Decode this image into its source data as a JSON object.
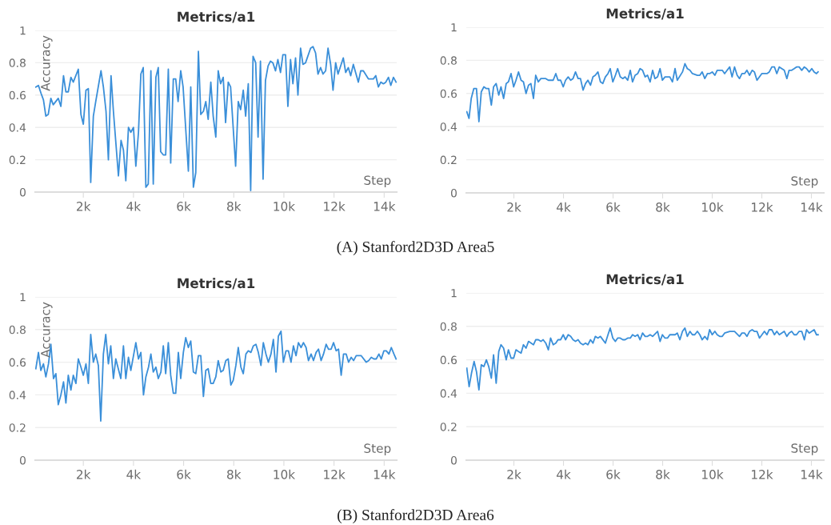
{
  "chart_data": [
    {
      "type": "line",
      "title": "Metrics/a1",
      "xlabel": "Step",
      "ylabel": "Accuracy",
      "annotations": [
        "(A) Stanford2D3D Area5"
      ],
      "xlim": [
        80,
        14500
      ],
      "ylim": [
        0,
        1
      ],
      "grid": "y",
      "xticks": [
        {
          "value": 2000,
          "label": "2k"
        },
        {
          "value": 4000,
          "label": "4k"
        },
        {
          "value": 6000,
          "label": "6k"
        },
        {
          "value": 8000,
          "label": "8k"
        },
        {
          "value": 10000,
          "label": "10k"
        },
        {
          "value": 12000,
          "label": "12k"
        },
        {
          "value": 14000,
          "label": "14k"
        }
      ],
      "yticks": [
        0,
        0.2,
        0.4,
        0.6,
        0.8,
        1
      ],
      "series": [
        {
          "color": "#3a8fd9",
          "x": [
            105,
            210,
            315,
            410,
            505,
            600,
            705,
            800,
            1000,
            1105,
            1210,
            1305,
            1400,
            1505,
            1600,
            1800,
            1905,
            2000,
            2105,
            2200,
            2295,
            2400,
            2495,
            2705,
            2800,
            2905,
            3000,
            3105,
            3200,
            3400,
            3505,
            3600,
            3695,
            3800,
            3895,
            4000,
            4095,
            4200,
            4295,
            4390,
            4495,
            4590,
            4695,
            4790,
            4895,
            4990,
            5085,
            5190,
            5285,
            5390,
            5485,
            5590,
            5685,
            5780,
            5885,
            5980,
            6190,
            6285,
            6390,
            6485,
            6590,
            6685,
            6790,
            6885,
            6980,
            7085,
            7180,
            7285,
            7380,
            7475,
            7580,
            7675,
            7780,
            7875,
            8075,
            8180,
            8275,
            8380,
            8475,
            8580,
            8675,
            8770,
            8875,
            8970,
            9065,
            9170,
            9265,
            9370,
            9465,
            9560,
            9665,
            9760,
            9865,
            9960,
            10065,
            10160,
            10265,
            10360,
            10465,
            10560,
            10665,
            10760,
            10865,
            11065,
            11160,
            11265,
            11360,
            11465,
            11560,
            11665,
            11760,
            11865,
            11960,
            12065,
            12160,
            12370,
            12465,
            12570,
            12665,
            12770,
            12970,
            13065,
            13170,
            13370,
            13570,
            13665,
            13770,
            13865,
            13970,
            14065,
            14170,
            14265,
            14370,
            14475
          ],
          "values": [
            0.65,
            0.66,
            0.61,
            0.57,
            0.47,
            0.48,
            0.58,
            0.54,
            0.58,
            0.53,
            0.72,
            0.62,
            0.62,
            0.71,
            0.68,
            0.76,
            0.48,
            0.42,
            0.63,
            0.64,
            0.06,
            0.47,
            0.56,
            0.75,
            0.65,
            0.5,
            0.2,
            0.72,
            0.5,
            0.1,
            0.32,
            0.26,
            0.07,
            0.4,
            0.37,
            0.4,
            0.16,
            0.37,
            0.73,
            0.77,
            0.03,
            0.05,
            0.75,
            0.05,
            0.71,
            0.77,
            0.25,
            0.23,
            0.23,
            0.76,
            0.18,
            0.7,
            0.7,
            0.56,
            0.75,
            0.65,
            0.13,
            0.65,
            0.03,
            0.12,
            0.87,
            0.48,
            0.5,
            0.56,
            0.45,
            0.68,
            0.47,
            0.34,
            0.75,
            0.67,
            0.71,
            0.43,
            0.68,
            0.65,
            0.16,
            0.56,
            0.51,
            0.63,
            0.47,
            0.67,
            0.01,
            0.84,
            0.8,
            0.34,
            0.81,
            0.08,
            0.69,
            0.78,
            0.81,
            0.8,
            0.75,
            0.82,
            0.74,
            0.85,
            0.85,
            0.53,
            0.82,
            0.67,
            0.83,
            0.6,
            0.89,
            0.79,
            0.8,
            0.89,
            0.9,
            0.86,
            0.73,
            0.77,
            0.73,
            0.75,
            0.89,
            0.79,
            0.63,
            0.8,
            0.73,
            0.83,
            0.74,
            0.77,
            0.72,
            0.79,
            0.68,
            0.75,
            0.75,
            0.7,
            0.7,
            0.72,
            0.65,
            0.68,
            0.67,
            0.68,
            0.71,
            0.66,
            0.71,
            0.68
          ]
        }
      ]
    },
    {
      "type": "line",
      "title": "Metrics/a1",
      "xlabel": "Step",
      "xlim": [
        80,
        14500
      ],
      "ylim": [
        0,
        1
      ],
      "grid": "y",
      "xticks": [
        {
          "value": 2000,
          "label": "2k"
        },
        {
          "value": 4000,
          "label": "4k"
        },
        {
          "value": 6000,
          "label": "6k"
        },
        {
          "value": 8000,
          "label": "8k"
        },
        {
          "value": 10000,
          "label": "10k"
        },
        {
          "value": 12000,
          "label": "12k"
        },
        {
          "value": 14000,
          "label": "14k"
        }
      ],
      "yticks": [
        0,
        0.2,
        0.4,
        0.6,
        0.8,
        1
      ],
      "series": [
        {
          "color": "#3a8fd9",
          "x": [
            100,
            190,
            280,
            385,
            490,
            590,
            685,
            790,
            880,
            985,
            1090,
            1180,
            1285,
            1390,
            1480,
            1585,
            1690,
            1780,
            1885,
            1990,
            2085,
            2185,
            2290,
            2385,
            2490,
            2590,
            2685,
            2790,
            2880,
            2985,
            3090,
            3285,
            3390,
            3585,
            3690,
            3780,
            3885,
            3990,
            4085,
            4190,
            4290,
            4385,
            4485,
            4590,
            4685,
            4790,
            4890,
            4985,
            5090,
            5190,
            5285,
            5390,
            5490,
            5585,
            5690,
            5795,
            5885,
            5990,
            6095,
            6185,
            6290,
            6395,
            6485,
            6590,
            6695,
            6785,
            6890,
            6995,
            7090,
            7190,
            7295,
            7390,
            7495,
            7595,
            7690,
            7795,
            7895,
            7990,
            8095,
            8290,
            8395,
            8500,
            8590,
            8800,
            8900,
            8995,
            9100,
            9200,
            9400,
            9500,
            9595,
            9700,
            9805,
            9895,
            10000,
            10105,
            10200,
            10300,
            10405,
            10500,
            10600,
            10705,
            10800,
            10900,
            11005,
            11100,
            11200,
            11305,
            11400,
            11505,
            11610,
            11700,
            11805,
            12000,
            12205,
            12300,
            12405,
            12510,
            12605,
            12705,
            12905,
            13010,
            13100,
            13205,
            13305,
            13400,
            13505,
            13610,
            13715,
            13805,
            13910,
            14015,
            14110,
            14205,
            14270
          ],
          "values": [
            0.49,
            0.45,
            0.57,
            0.63,
            0.63,
            0.43,
            0.61,
            0.64,
            0.63,
            0.63,
            0.53,
            0.64,
            0.66,
            0.59,
            0.64,
            0.57,
            0.66,
            0.67,
            0.72,
            0.64,
            0.68,
            0.73,
            0.68,
            0.67,
            0.6,
            0.65,
            0.66,
            0.57,
            0.71,
            0.67,
            0.69,
            0.69,
            0.68,
            0.68,
            0.72,
            0.68,
            0.68,
            0.64,
            0.68,
            0.7,
            0.68,
            0.69,
            0.73,
            0.69,
            0.69,
            0.62,
            0.66,
            0.68,
            0.65,
            0.7,
            0.71,
            0.73,
            0.67,
            0.66,
            0.7,
            0.72,
            0.75,
            0.67,
            0.71,
            0.75,
            0.7,
            0.69,
            0.7,
            0.68,
            0.74,
            0.67,
            0.71,
            0.72,
            0.75,
            0.74,
            0.7,
            0.71,
            0.67,
            0.74,
            0.69,
            0.7,
            0.75,
            0.68,
            0.7,
            0.7,
            0.67,
            0.75,
            0.68,
            0.73,
            0.78,
            0.75,
            0.74,
            0.72,
            0.71,
            0.71,
            0.73,
            0.69,
            0.72,
            0.72,
            0.73,
            0.71,
            0.74,
            0.74,
            0.74,
            0.72,
            0.74,
            0.76,
            0.7,
            0.76,
            0.71,
            0.69,
            0.72,
            0.72,
            0.74,
            0.71,
            0.74,
            0.73,
            0.68,
            0.72,
            0.72,
            0.73,
            0.76,
            0.76,
            0.72,
            0.76,
            0.74,
            0.69,
            0.74,
            0.74,
            0.75,
            0.76,
            0.76,
            0.74,
            0.76,
            0.75,
            0.73,
            0.75,
            0.73,
            0.72,
            0.73
          ]
        }
      ]
    },
    {
      "type": "line",
      "title": "Metrics/a1",
      "xlabel": "Step",
      "ylabel": "Accuracy",
      "annotations": [
        "(B) Stanford2D3D Area6"
      ],
      "xlim": [
        80,
        14500
      ],
      "ylim": [
        0,
        1
      ],
      "grid": "y",
      "xticks": [
        {
          "value": 2000,
          "label": "2k"
        },
        {
          "value": 4000,
          "label": "4k"
        },
        {
          "value": 6000,
          "label": "6k"
        },
        {
          "value": 8000,
          "label": "8k"
        },
        {
          "value": 10000,
          "label": "10k"
        },
        {
          "value": 12000,
          "label": "12k"
        },
        {
          "value": 14000,
          "label": "14k"
        }
      ],
      "yticks": [
        0,
        0.2,
        0.4,
        0.6,
        0.8,
        1
      ],
      "series": [
        {
          "color": "#3a8fd9",
          "x": [
            105,
            210,
            305,
            410,
            505,
            610,
            705,
            810,
            905,
            1000,
            1105,
            1210,
            1305,
            1400,
            1505,
            1600,
            1705,
            1800,
            1905,
            2000,
            2105,
            2200,
            2295,
            2400,
            2495,
            2600,
            2695,
            2800,
            2895,
            3000,
            3095,
            3200,
            3295,
            3495,
            3600,
            3695,
            3800,
            3895,
            4095,
            4200,
            4295,
            4400,
            4495,
            4600,
            4695,
            4790,
            4895,
            4990,
            5095,
            5190,
            5285,
            5390,
            5485,
            5590,
            5685,
            5790,
            5885,
            5990,
            6085,
            6190,
            6285,
            6390,
            6485,
            6590,
            6685,
            6790,
            6885,
            6980,
            7085,
            7180,
            7285,
            7380,
            7485,
            7580,
            7685,
            7780,
            7885,
            7980,
            8085,
            8180,
            8285,
            8380,
            8485,
            8580,
            8685,
            8780,
            8885,
            8980,
            9085,
            9180,
            9285,
            9380,
            9485,
            9580,
            9685,
            9780,
            9885,
            9980,
            10085,
            10180,
            10285,
            10380,
            10485,
            10580,
            10685,
            10780,
            10885,
            10980,
            11085,
            11180,
            11285,
            11380,
            11485,
            11580,
            11685,
            11780,
            11885,
            11980,
            12085,
            12180,
            12285,
            12380,
            12485,
            12580,
            12685,
            12780,
            12885,
            12980,
            13085,
            13285,
            13385,
            13485,
            13590,
            13685,
            13790,
            13885,
            13990,
            14085,
            14190,
            14285,
            14390,
            14475
          ],
          "values": [
            0.56,
            0.66,
            0.55,
            0.59,
            0.51,
            0.59,
            0.71,
            0.5,
            0.53,
            0.34,
            0.4,
            0.48,
            0.35,
            0.52,
            0.43,
            0.52,
            0.47,
            0.62,
            0.57,
            0.52,
            0.59,
            0.47,
            0.77,
            0.6,
            0.65,
            0.58,
            0.24,
            0.65,
            0.77,
            0.59,
            0.7,
            0.5,
            0.62,
            0.5,
            0.7,
            0.5,
            0.63,
            0.55,
            0.72,
            0.62,
            0.66,
            0.4,
            0.51,
            0.57,
            0.65,
            0.54,
            0.57,
            0.5,
            0.54,
            0.7,
            0.53,
            0.72,
            0.52,
            0.41,
            0.41,
            0.66,
            0.5,
            0.66,
            0.75,
            0.69,
            0.73,
            0.54,
            0.53,
            0.64,
            0.64,
            0.39,
            0.55,
            0.56,
            0.47,
            0.47,
            0.51,
            0.61,
            0.54,
            0.55,
            0.61,
            0.62,
            0.46,
            0.49,
            0.58,
            0.69,
            0.57,
            0.53,
            0.65,
            0.67,
            0.66,
            0.7,
            0.71,
            0.66,
            0.58,
            0.72,
            0.65,
            0.6,
            0.65,
            0.74,
            0.54,
            0.76,
            0.79,
            0.6,
            0.67,
            0.67,
            0.6,
            0.7,
            0.64,
            0.72,
            0.69,
            0.72,
            0.69,
            0.61,
            0.65,
            0.61,
            0.66,
            0.68,
            0.61,
            0.65,
            0.71,
            0.68,
            0.68,
            0.72,
            0.67,
            0.68,
            0.52,
            0.65,
            0.65,
            0.6,
            0.63,
            0.61,
            0.64,
            0.64,
            0.64,
            0.6,
            0.61,
            0.63,
            0.62,
            0.62,
            0.65,
            0.62,
            0.67,
            0.67,
            0.65,
            0.69,
            0.65,
            0.62
          ]
        }
      ]
    },
    {
      "type": "line",
      "title": "Metrics/a1",
      "xlabel": "Step",
      "xlim": [
        80,
        14500
      ],
      "ylim": [
        0,
        1
      ],
      "grid": "y",
      "xticks": [
        {
          "value": 2000,
          "label": "2k"
        },
        {
          "value": 4000,
          "label": "4k"
        },
        {
          "value": 6000,
          "label": "6k"
        },
        {
          "value": 8000,
          "label": "8k"
        },
        {
          "value": 10000,
          "label": "10k"
        },
        {
          "value": 12000,
          "label": "12k"
        },
        {
          "value": 14000,
          "label": "14k"
        }
      ],
      "yticks": [
        0,
        0.2,
        0.4,
        0.6,
        0.8,
        1
      ],
      "series": [
        {
          "color": "#3a8fd9",
          "x": [
            100,
            195,
            290,
            395,
            490,
            590,
            685,
            790,
            890,
            985,
            1090,
            1180,
            1285,
            1390,
            1480,
            1585,
            1690,
            1780,
            1885,
            1990,
            2085,
            2185,
            2290,
            2385,
            2490,
            2590,
            2790,
            2880,
            2985,
            3090,
            3180,
            3285,
            3390,
            3480,
            3585,
            3690,
            3780,
            3885,
            3990,
            4085,
            4190,
            4290,
            4385,
            4485,
            4590,
            4685,
            4790,
            4890,
            4985,
            5090,
            5190,
            5285,
            5390,
            5490,
            5690,
            5795,
            5885,
            5990,
            6095,
            6185,
            6290,
            6395,
            6485,
            6590,
            6695,
            6785,
            6890,
            6995,
            7090,
            7190,
            7295,
            7390,
            7495,
            7595,
            7795,
            7895,
            7990,
            8095,
            8195,
            8290,
            8500,
            8590,
            8695,
            8800,
            8900,
            8995,
            9100,
            9200,
            9295,
            9400,
            9500,
            9595,
            9700,
            9805,
            9895,
            10000,
            10105,
            10200,
            10300,
            10405,
            10500,
            10705,
            10900,
            11100,
            11200,
            11305,
            11400,
            11505,
            11610,
            11700,
            11805,
            11905,
            12105,
            12205,
            12300,
            12405,
            12510,
            12605,
            12705,
            12905,
            13010,
            13100,
            13205,
            13305,
            13400,
            13505,
            13610,
            13715,
            13805,
            13910,
            14015,
            14110,
            14205,
            14270
          ],
          "values": [
            0.55,
            0.44,
            0.52,
            0.59,
            0.53,
            0.42,
            0.57,
            0.56,
            0.6,
            0.56,
            0.49,
            0.63,
            0.46,
            0.65,
            0.69,
            0.67,
            0.6,
            0.66,
            0.61,
            0.61,
            0.66,
            0.65,
            0.64,
            0.69,
            0.67,
            0.71,
            0.69,
            0.72,
            0.72,
            0.71,
            0.72,
            0.7,
            0.66,
            0.73,
            0.69,
            0.7,
            0.72,
            0.72,
            0.75,
            0.72,
            0.75,
            0.74,
            0.72,
            0.71,
            0.72,
            0.7,
            0.69,
            0.7,
            0.69,
            0.72,
            0.7,
            0.74,
            0.73,
            0.74,
            0.7,
            0.75,
            0.79,
            0.73,
            0.71,
            0.73,
            0.73,
            0.72,
            0.72,
            0.73,
            0.73,
            0.75,
            0.74,
            0.75,
            0.72,
            0.76,
            0.74,
            0.74,
            0.75,
            0.74,
            0.77,
            0.71,
            0.75,
            0.73,
            0.73,
            0.75,
            0.75,
            0.76,
            0.72,
            0.77,
            0.79,
            0.74,
            0.77,
            0.75,
            0.75,
            0.77,
            0.75,
            0.72,
            0.74,
            0.72,
            0.78,
            0.75,
            0.77,
            0.75,
            0.74,
            0.74,
            0.76,
            0.77,
            0.77,
            0.74,
            0.76,
            0.76,
            0.74,
            0.77,
            0.78,
            0.77,
            0.77,
            0.73,
            0.77,
            0.75,
            0.78,
            0.78,
            0.75,
            0.77,
            0.75,
            0.77,
            0.74,
            0.76,
            0.77,
            0.75,
            0.75,
            0.77,
            0.77,
            0.72,
            0.78,
            0.76,
            0.77,
            0.78,
            0.75,
            0.75
          ]
        }
      ]
    }
  ]
}
